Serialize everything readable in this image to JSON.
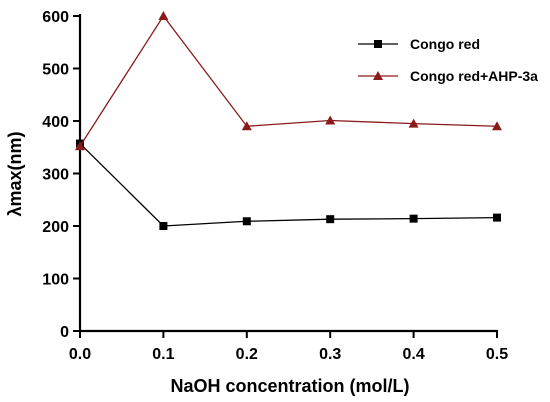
{
  "chart_data": {
    "type": "line",
    "xlabel": "NaOH concentration (mol/L)",
    "ylabel": "λmax(nm)",
    "xlim": [
      0,
      0.5
    ],
    "ylim": [
      0,
      600
    ],
    "xticks": [
      "0.0",
      "0.1",
      "0.2",
      "0.3",
      "0.4",
      "0.5"
    ],
    "yticks": [
      "0",
      "100",
      "200",
      "300",
      "400",
      "500",
      "600"
    ],
    "x": [
      0.0,
      0.1,
      0.2,
      0.3,
      0.4,
      0.5
    ],
    "grid": false,
    "legend_position": "top-right",
    "series": [
      {
        "name": "Congo red",
        "values": [
          357,
          200,
          209,
          213,
          214,
          216
        ],
        "color": "#000000",
        "marker": "square"
      },
      {
        "name": "Congo red+AHP-3a",
        "values": [
          352,
          600,
          390,
          401,
          395,
          390
        ],
        "color": "#8b1a1a",
        "marker": "triangle"
      }
    ]
  }
}
